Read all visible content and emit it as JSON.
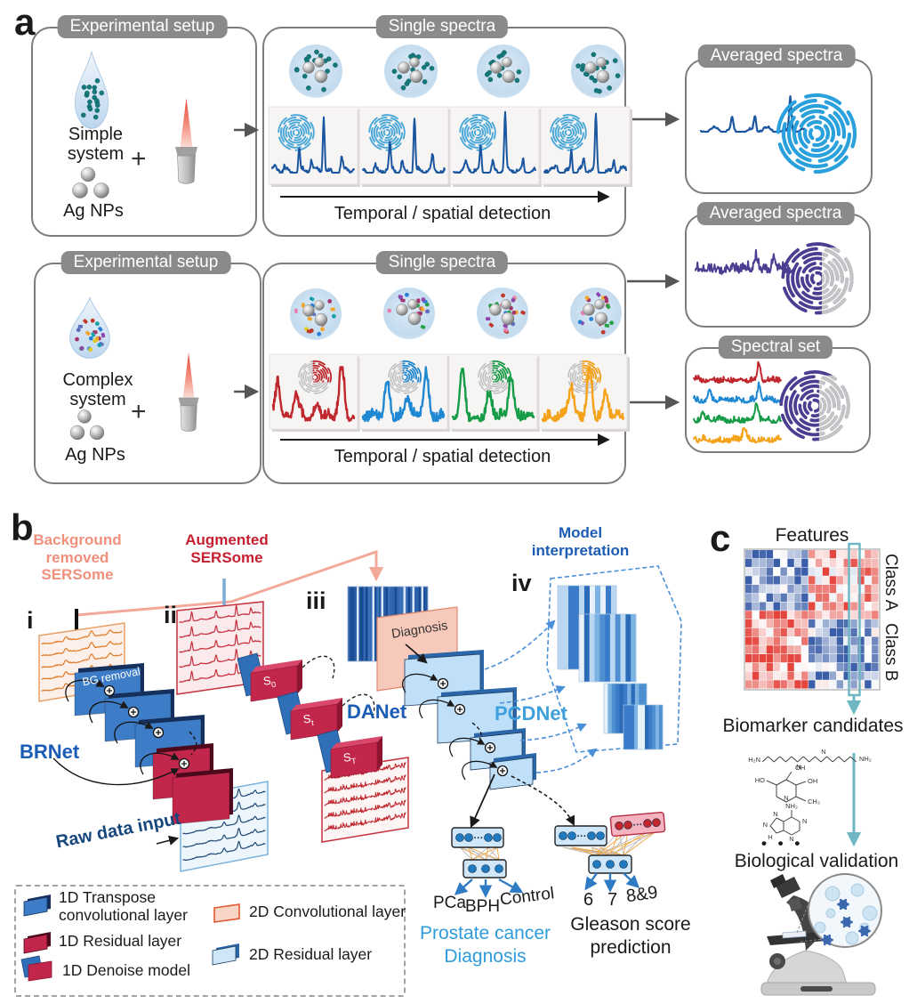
{
  "panel_a": {
    "label": "a",
    "row1": {
      "setup_title": "Experimental setup",
      "sample": "Simple\nsystem",
      "plus": "+",
      "nps": "Ag NPs",
      "single_title": "Single spectra",
      "axis": "Temporal / spatial detection",
      "avg_title": "Averaged spectra"
    },
    "row2": {
      "setup_title": "Experimental setup",
      "sample": "Complex\nsystem",
      "plus": "+",
      "nps": "Ag NPs",
      "single_title": "Single spectra",
      "axis": "Temporal / spatial detection",
      "avg_title": "Averaged spectra",
      "set_title": "Spectral set"
    }
  },
  "panel_b": {
    "label": "b",
    "bg_removed": "Background\nremoved\nSERSome",
    "augmented": "Augmented\nSERSome",
    "steps": {
      "i": "i",
      "ii": "ii",
      "iii": "iii",
      "iv": "iv"
    },
    "bg_removal": "BG removal",
    "brnet": "BRNet",
    "danet": "DANet",
    "pcdnet": "PCDNet",
    "raw_input": "Raw data input",
    "diagnosis": "Diagnosis",
    "model_interpretation": "Model\ninterpretation",
    "blocks": [
      {
        "base": "S",
        "sub": "0"
      },
      {
        "base": "S",
        "sub": "t"
      },
      {
        "base": "S",
        "sub": "T"
      }
    ],
    "nn_dots": "···",
    "diag_classes": [
      "PCa",
      "BPH",
      "Control"
    ],
    "diag_label": "Prostate cancer\nDiagnosis",
    "gleason_classes": [
      "6",
      "7",
      "8&9"
    ],
    "gleason_label": "Gleason score\nprediction",
    "legend": {
      "transpose": "1D Transpose\nconvolutional layer",
      "residual1d": "1D Residual layer",
      "denoise": "1D Denoise model",
      "conv2d": "2D Convolutional layer",
      "residual2d": "2D Residual layer"
    }
  },
  "panel_c": {
    "label": "c",
    "features": "Features",
    "class_a": "Class A",
    "class_b": "Class B",
    "biomarker": "Biomarker candidates",
    "ellipsis": "•  •  •",
    "validation": "Biological validation",
    "molecules": {
      "spermine": {
        "l": "H₂N",
        "n1": "N",
        "n2": "N",
        "r": "NH₂"
      },
      "pyridoxine": {
        "oh_top": "OH",
        "ho": "HO",
        "oh": "OH",
        "ch3": "CH₃",
        "n": "N"
      },
      "adenine": {
        "nh2": "NH₂",
        "n1": "N",
        "n2": "N",
        "n3": "N",
        "n4": "N",
        "h": "H"
      }
    }
  },
  "colors": {
    "pill_gray": "#8a8a8a",
    "spec_blue": "#1a56a0",
    "fp_blue": "#2aa0dc",
    "red": "#c0272d",
    "blue": "#1e88d2",
    "green": "#169b46",
    "orange": "#f5a21b",
    "purple": "#4b3e92",
    "salmon_text": "#f0907d",
    "dark_red_text": "#c51f30",
    "net_blue": "#1b5cb5",
    "pcd_blue": "#3fa0dc",
    "diag_blue": "#2e9bdb",
    "teal": "#6fb7c4"
  }
}
